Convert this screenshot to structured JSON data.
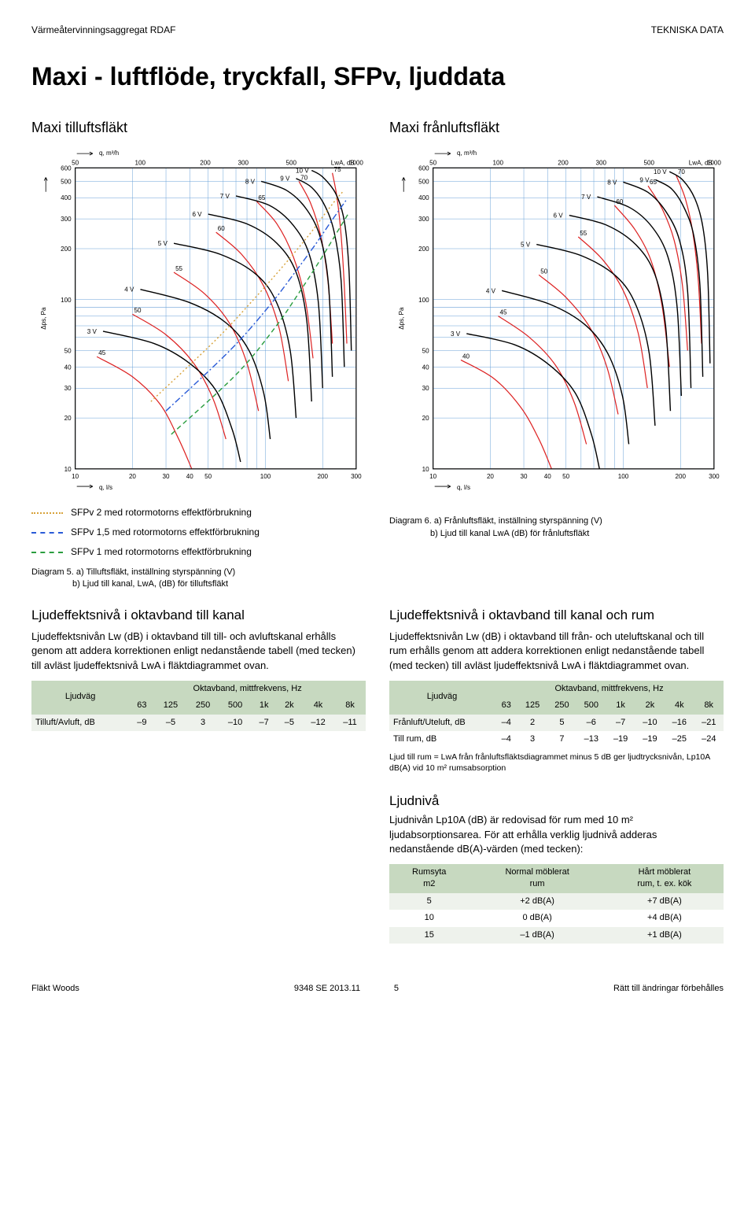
{
  "header": {
    "left": "Värmeåtervinningsaggregat RDAF",
    "right": "TEKNISKA DATA"
  },
  "page_title": "Maxi - luftflöde, tryckfall, SFPv, ljuddata",
  "chart_left": {
    "title": "Maxi tilluftsfläkt",
    "x_top_label": "q, m³/h",
    "x_bottom_label": "q, l/s",
    "y_label": "Δps, Pa",
    "lwa_label": "LwA, dB",
    "x_top_ticks": [
      50,
      100,
      200,
      300,
      500,
      1000
    ],
    "x_bottom_ticks": [
      10,
      20,
      30,
      40,
      50,
      100,
      200,
      300
    ],
    "y_ticks": [
      10,
      20,
      30,
      40,
      50,
      100,
      200,
      300,
      400,
      500,
      600
    ],
    "fan_curves": [
      {
        "label": "10 V",
        "pts": [
          [
            175,
            580
          ],
          [
            200,
            530
          ],
          [
            235,
            420
          ],
          [
            260,
            290
          ],
          [
            275,
            150
          ],
          [
            283,
            50
          ]
        ]
      },
      {
        "label": "9 V",
        "pts": [
          [
            145,
            520
          ],
          [
            175,
            460
          ],
          [
            205,
            360
          ],
          [
            230,
            250
          ],
          [
            250,
            130
          ],
          [
            260,
            40
          ]
        ]
      },
      {
        "label": "8 V",
        "pts": [
          [
            95,
            500
          ],
          [
            130,
            440
          ],
          [
            165,
            340
          ],
          [
            195,
            230
          ],
          [
            215,
            120
          ],
          [
            225,
            35
          ]
        ]
      },
      {
        "label": "7 V",
        "pts": [
          [
            70,
            410
          ],
          [
            105,
            360
          ],
          [
            140,
            275
          ],
          [
            170,
            185
          ],
          [
            190,
            95
          ],
          [
            200,
            30
          ]
        ]
      },
      {
        "label": "6 V",
        "pts": [
          [
            50,
            320
          ],
          [
            80,
            280
          ],
          [
            115,
            215
          ],
          [
            145,
            145
          ],
          [
            165,
            75
          ],
          [
            175,
            25
          ]
        ]
      },
      {
        "label": "5 V",
        "pts": [
          [
            33,
            215
          ],
          [
            58,
            185
          ],
          [
            90,
            140
          ],
          [
            115,
            95
          ],
          [
            135,
            50
          ],
          [
            145,
            20
          ]
        ]
      },
      {
        "label": "4 V",
        "pts": [
          [
            22,
            115
          ],
          [
            40,
            96
          ],
          [
            62,
            73
          ],
          [
            82,
            50
          ],
          [
            98,
            28
          ],
          [
            106,
            15
          ]
        ]
      },
      {
        "label": "3 V",
        "pts": [
          [
            14,
            65
          ],
          [
            26,
            55
          ],
          [
            40,
            42
          ],
          [
            55,
            29
          ],
          [
            67,
            17
          ],
          [
            74,
            11
          ]
        ]
      }
    ],
    "fan_curve_color": "#000000",
    "lwa_curves": [
      {
        "label": "75",
        "pts": [
          [
            225,
            560
          ],
          [
            238,
            400
          ],
          [
            250,
            240
          ],
          [
            260,
            120
          ],
          [
            268,
            55
          ]
        ]
      },
      {
        "label": "70",
        "pts": [
          [
            150,
            500
          ],
          [
            173,
            370
          ],
          [
            195,
            240
          ],
          [
            213,
            130
          ],
          [
            225,
            55
          ]
        ]
      },
      {
        "label": "65",
        "pts": [
          [
            90,
            380
          ],
          [
            115,
            280
          ],
          [
            140,
            180
          ],
          [
            162,
            100
          ],
          [
            178,
            45
          ]
        ]
      },
      {
        "label": "60",
        "pts": [
          [
            55,
            250
          ],
          [
            75,
            185
          ],
          [
            98,
            120
          ],
          [
            118,
            68
          ],
          [
            132,
            33
          ]
        ]
      },
      {
        "label": "55",
        "pts": [
          [
            33,
            145
          ],
          [
            48,
            108
          ],
          [
            65,
            72
          ],
          [
            80,
            42
          ],
          [
            92,
            22
          ]
        ]
      },
      {
        "label": "50",
        "pts": [
          [
            20,
            82
          ],
          [
            30,
            62
          ],
          [
            42,
            42
          ],
          [
            53,
            26
          ],
          [
            62,
            15
          ]
        ]
      },
      {
        "label": "45",
        "pts": [
          [
            13,
            46
          ],
          [
            20,
            35
          ],
          [
            28,
            24
          ],
          [
            35,
            15
          ],
          [
            41,
            10
          ]
        ]
      }
    ],
    "lwa_color": "#d22",
    "sfpv_curves": [
      {
        "style": "dotted",
        "color": "#d7a23a",
        "pts": [
          [
            25,
            25
          ],
          [
            55,
            58
          ],
          [
            90,
            105
          ],
          [
            130,
            168
          ],
          [
            170,
            242
          ],
          [
            205,
            320
          ],
          [
            235,
            390
          ],
          [
            258,
            440
          ]
        ]
      },
      {
        "style": "dashdot",
        "color": "#2a5bd7",
        "pts": [
          [
            30,
            22
          ],
          [
            65,
            50
          ],
          [
            105,
            92
          ],
          [
            145,
            148
          ],
          [
            185,
            215
          ],
          [
            218,
            282
          ],
          [
            245,
            340
          ],
          [
            265,
            385
          ]
        ]
      },
      {
        "style": "dashed",
        "color": "#2a9d3f",
        "pts": [
          [
            32,
            16
          ],
          [
            70,
            36
          ],
          [
            112,
            68
          ],
          [
            152,
            112
          ],
          [
            192,
            168
          ],
          [
            225,
            225
          ],
          [
            252,
            278
          ],
          [
            272,
            320
          ]
        ]
      }
    ],
    "legend": [
      {
        "style": "dotted",
        "color": "#d7a23a",
        "text": "SFPv 2 med rotormotorns effektförbrukning"
      },
      {
        "style": "dashdot",
        "color": "#2a5bd7",
        "text": "SFPv 1,5 med rotormotorns effektförbrukning"
      },
      {
        "style": "dashed",
        "color": "#2a9d3f",
        "text": "SFPv 1 med rotormotorns effektförbrukning"
      }
    ],
    "caption_label": "Diagram 5.",
    "caption_a": "a) Tilluftsfläkt, inställning styrspänning (V)",
    "caption_b": "b) Ljud till kanal, LwA, (dB) för tilluftsfläkt"
  },
  "chart_right": {
    "title": "Maxi frånluftsfläkt",
    "x_top_label": "q, m³/h",
    "x_bottom_label": "q, l/s",
    "y_label": "Δps, Pa",
    "lwa_label": "LwA, dB",
    "x_top_ticks": [
      50,
      100,
      200,
      300,
      500,
      1000
    ],
    "x_bottom_ticks": [
      10,
      20,
      30,
      40,
      50,
      100,
      200,
      300
    ],
    "y_ticks": [
      10,
      20,
      30,
      40,
      50,
      100,
      200,
      300,
      400,
      500,
      600
    ],
    "fan_curves": [
      {
        "label": "10 V",
        "pts": [
          [
            175,
            570
          ],
          [
            205,
            510
          ],
          [
            238,
            395
          ],
          [
            262,
            270
          ],
          [
            278,
            140
          ],
          [
            286,
            42
          ]
        ]
      },
      {
        "label": "9 V",
        "pts": [
          [
            148,
            510
          ],
          [
            180,
            450
          ],
          [
            210,
            345
          ],
          [
            235,
            238
          ],
          [
            253,
            122
          ],
          [
            262,
            35
          ]
        ]
      },
      {
        "label": "8 V",
        "pts": [
          [
            100,
            495
          ],
          [
            135,
            430
          ],
          [
            168,
            330
          ],
          [
            198,
            222
          ],
          [
            218,
            112
          ],
          [
            227,
            30
          ]
        ]
      },
      {
        "label": "7 V",
        "pts": [
          [
            73,
            405
          ],
          [
            108,
            350
          ],
          [
            142,
            268
          ],
          [
            172,
            178
          ],
          [
            192,
            90
          ],
          [
            202,
            27
          ]
        ]
      },
      {
        "label": "6 V",
        "pts": [
          [
            52,
            315
          ],
          [
            82,
            275
          ],
          [
            117,
            210
          ],
          [
            147,
            140
          ],
          [
            167,
            70
          ],
          [
            177,
            22
          ]
        ]
      },
      {
        "label": "5 V",
        "pts": [
          [
            35,
            212
          ],
          [
            60,
            182
          ],
          [
            92,
            137
          ],
          [
            117,
            92
          ],
          [
            137,
            48
          ],
          [
            147,
            18
          ]
        ]
      },
      {
        "label": "4 V",
        "pts": [
          [
            23,
            113
          ],
          [
            41,
            94
          ],
          [
            63,
            71
          ],
          [
            83,
            48
          ],
          [
            99,
            27
          ],
          [
            107,
            14
          ]
        ]
      },
      {
        "label": "3 V",
        "pts": [
          [
            15,
            63
          ],
          [
            27,
            54
          ],
          [
            41,
            41
          ],
          [
            56,
            28
          ],
          [
            68,
            16
          ],
          [
            75,
            10
          ]
        ]
      }
    ],
    "fan_curve_color": "#000000",
    "lwa_curves": [
      {
        "label": "70",
        "pts": [
          [
            190,
            540
          ],
          [
            212,
            395
          ],
          [
            232,
            250
          ],
          [
            248,
            130
          ],
          [
            258,
            55
          ]
        ]
      },
      {
        "label": "65",
        "pts": [
          [
            135,
            470
          ],
          [
            160,
            345
          ],
          [
            185,
            225
          ],
          [
            205,
            120
          ],
          [
            218,
            50
          ]
        ]
      },
      {
        "label": "60",
        "pts": [
          [
            90,
            360
          ],
          [
            115,
            260
          ],
          [
            140,
            170
          ],
          [
            160,
            92
          ],
          [
            175,
            40
          ]
        ]
      },
      {
        "label": "55",
        "pts": [
          [
            58,
            235
          ],
          [
            78,
            172
          ],
          [
            100,
            113
          ],
          [
            120,
            63
          ],
          [
            134,
            30
          ]
        ]
      },
      {
        "label": "50",
        "pts": [
          [
            36,
            140
          ],
          [
            50,
            103
          ],
          [
            67,
            68
          ],
          [
            82,
            40
          ],
          [
            94,
            21
          ]
        ]
      },
      {
        "label": "45",
        "pts": [
          [
            22,
            80
          ],
          [
            32,
            60
          ],
          [
            44,
            41
          ],
          [
            55,
            25
          ],
          [
            64,
            14
          ]
        ]
      },
      {
        "label": "40",
        "pts": [
          [
            14,
            44
          ],
          [
            21,
            34
          ],
          [
            29,
            23
          ],
          [
            36,
            15
          ],
          [
            42,
            10
          ]
        ]
      }
    ],
    "lwa_color": "#d22",
    "caption_label": "Diagram 6.",
    "caption_a": "a) Frånluftsfläkt, inställning styrspänning (V)",
    "caption_b": "b) Ljud till kanal LwA (dB) för frånluftsfläkt"
  },
  "grid": {
    "color": "#6aa2d8",
    "bg": "#ffffff"
  },
  "col_left": {
    "heading": "Ljudeffektsnivå i oktavband till kanal",
    "para": "Ljudeffektsnivån Lw (dB) i oktavband till till- och avluftskanal erhålls genom att addera korrektionen enligt nedanstående tabell (med tecken) till avläst ljudeffektsnivå LwA i fläktdiagrammet ovan.",
    "table": {
      "header_left": "Ljudväg",
      "header_right": "Oktavband, mittfrekvens, Hz",
      "freqs": [
        "63",
        "125",
        "250",
        "500",
        "1k",
        "2k",
        "4k",
        "8k"
      ],
      "rows": [
        {
          "label": "Tilluft/Avluft, dB",
          "vals": [
            "–9",
            "–5",
            "3",
            "–10",
            "–7",
            "–5",
            "–12",
            "–11"
          ]
        }
      ]
    }
  },
  "col_right": {
    "heading": "Ljudeffektsnivå i oktavband till kanal och rum",
    "para": "Ljudeffektsnivån Lw (dB) i oktavband till från- och uteluftskanal och till rum erhålls genom att addera korrektionen enligt nedanstående tabell (med tecken) till avläst ljudeffektsnivå LwA i fläktdiagrammet ovan.",
    "table": {
      "header_left": "Ljudväg",
      "header_right": "Oktavband, mittfrekvens, Hz",
      "freqs": [
        "63",
        "125",
        "250",
        "500",
        "1k",
        "2k",
        "4k",
        "8k"
      ],
      "rows": [
        {
          "label": "Frånluft/Uteluft, dB",
          "vals": [
            "–4",
            "2",
            "5",
            "–6",
            "–7",
            "–10",
            "–16",
            "–21"
          ]
        },
        {
          "label": "Till rum, dB",
          "vals": [
            "–4",
            "3",
            "7",
            "–13",
            "–19",
            "–19",
            "–25",
            "–24"
          ]
        }
      ]
    },
    "footnote": "Ljud till rum = LwA från frånluftsfläktsdiagrammet minus 5 dB ger ljudtrycksnivån, Lp10A dB(A) vid 10 m² rumsabsorption"
  },
  "ljudniva": {
    "heading": "Ljudnivå",
    "para": "Ljudnivån Lp10A (dB) är redovisad för rum med 10 m² ljudabsorptionsarea. För att erhålla verklig ljudnivå adderas nedanstående dB(A)-värden (med tecken):",
    "headers": [
      "Rumsyta\nm2",
      "Normal möblerat\nrum",
      "Hårt möblerat\nrum, t. ex. kök"
    ],
    "rows": [
      [
        "5",
        "+2 dB(A)",
        "+7 dB(A)"
      ],
      [
        "10",
        "0 dB(A)",
        "+4 dB(A)"
      ],
      [
        "15",
        "–1 dB(A)",
        "+1 dB(A)"
      ]
    ]
  },
  "footer": {
    "left": "Fläkt Woods",
    "center": "9348 SE 2013.11",
    "page": "5",
    "right": "Rätt till ändringar förbehålles"
  }
}
